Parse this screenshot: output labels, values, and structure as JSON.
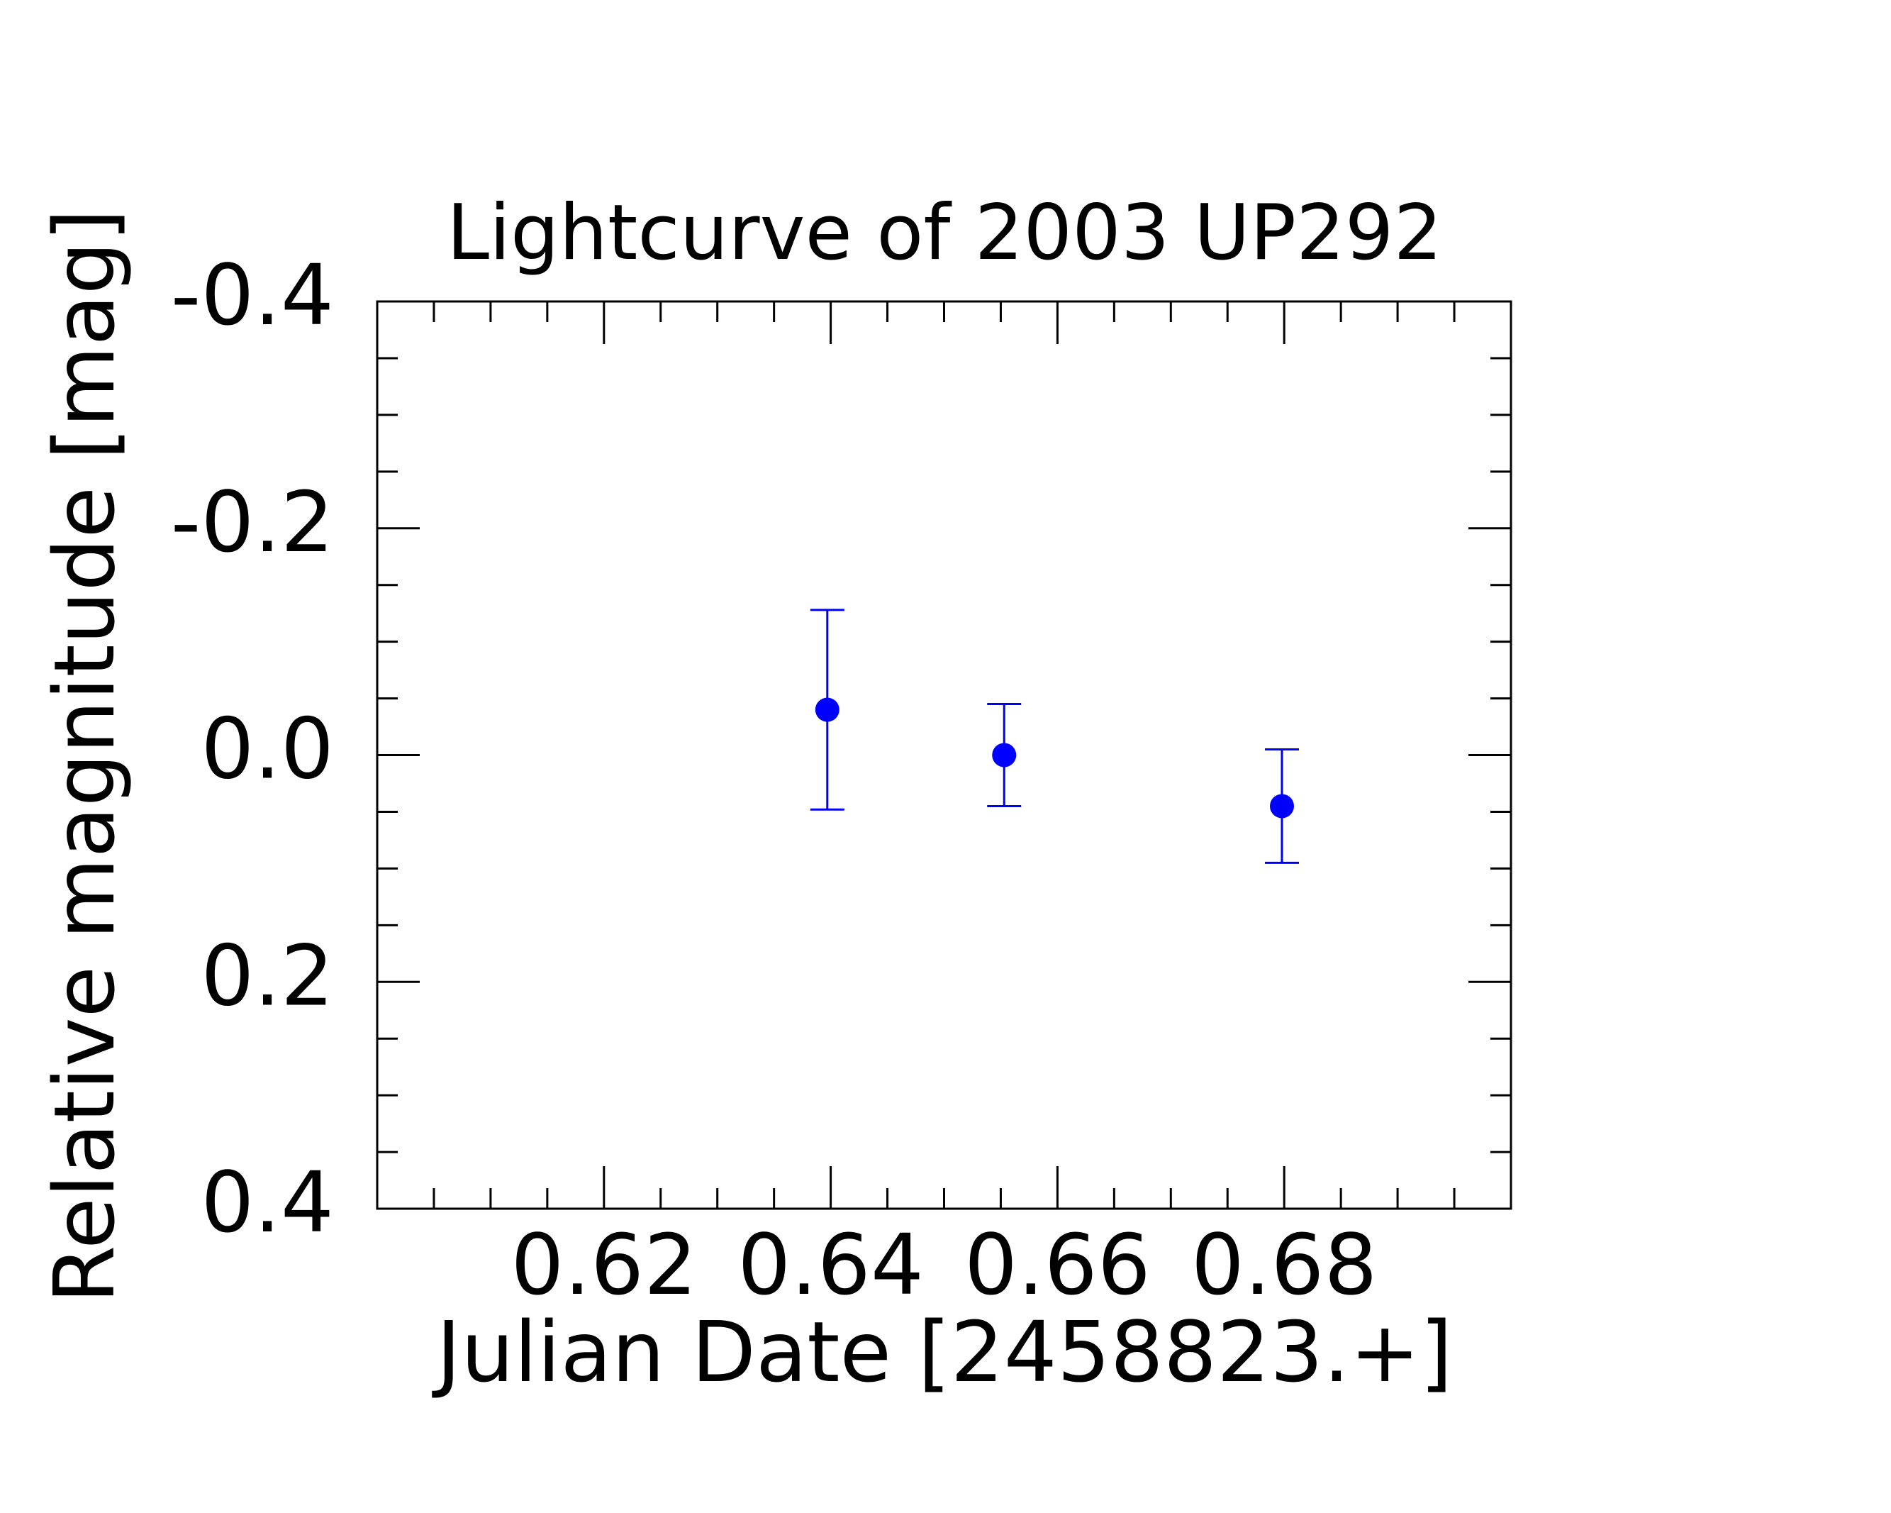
{
  "chart_data": {
    "type": "errorbar",
    "title": "Lightcurve of 2003 UP292",
    "xlabel": "Julian Date [2458823.+]",
    "ylabel": "Relative magnitude [mag]",
    "x": [
      0.6397,
      0.6553,
      0.6798
    ],
    "values": [
      -0.04,
      0.0,
      0.045
    ],
    "errors": [
      0.088,
      0.045,
      0.05
    ],
    "color": "#0000ff",
    "xlim": [
      0.6,
      0.7
    ],
    "xticks": [
      0.62,
      0.64,
      0.66,
      0.68
    ],
    "xminorticks": [
      0.605,
      0.61,
      0.615,
      0.625,
      0.63,
      0.635,
      0.645,
      0.65,
      0.655,
      0.665,
      0.67,
      0.675,
      0.685,
      0.69,
      0.695
    ],
    "ylim": [
      0.4,
      -0.4
    ],
    "y_inverted": true,
    "yticks": [
      -0.4,
      -0.2,
      {
        "value": 0,
        "label": "0.0"
      },
      0.2,
      0.4
    ],
    "yminorticks": [
      -0.35,
      -0.3,
      -0.25,
      -0.15,
      -0.1,
      -0.05,
      0.05,
      0.1,
      0.15,
      0.25,
      0.3,
      0.35
    ],
    "grid": false
  }
}
